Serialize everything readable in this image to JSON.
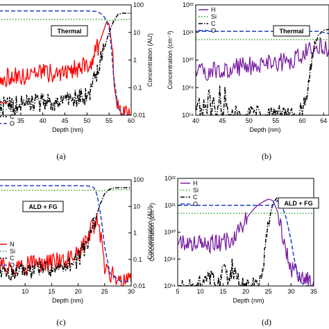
{
  "captions": [
    "(a)",
    "(b)",
    "(c)",
    "(d)"
  ],
  "chart_data": [
    {
      "panel": "a",
      "type": "line",
      "scale_y": "log",
      "xlabel": "Depth (nm)",
      "ylabel": "Concentration (AU)",
      "xlim": [
        30,
        60
      ],
      "ylim": [
        0.01,
        100
      ],
      "xticks": [
        35,
        40,
        45,
        50,
        55,
        60
      ],
      "yticks": [
        0.01,
        0.1,
        1,
        10,
        100
      ],
      "ytick_labels": [
        "0.01",
        "0.1",
        "1",
        "10",
        "100"
      ],
      "annotation": "Thermal",
      "legend": {
        "position": "bottom-left",
        "labels": [
          "N",
          "Si",
          "C",
          "O"
        ]
      },
      "series": [
        {
          "name": "N",
          "color": "#ff0000",
          "style": "solid",
          "x": [
            30,
            34,
            38,
            42,
            45,
            48,
            50,
            51,
            52,
            53,
            54,
            54.5,
            55,
            55.5,
            56,
            56.5,
            57,
            58,
            59,
            60
          ],
          "y": [
            0.2,
            0.25,
            0.3,
            0.35,
            0.4,
            0.5,
            0.7,
            1,
            2,
            5,
            15,
            25,
            20,
            5,
            0.5,
            0.05,
            0.02,
            0.01,
            0.01,
            0.01
          ]
        },
        {
          "name": "Si",
          "color": "#2ca02c",
          "style": "dotted",
          "x": [
            30,
            40,
            50,
            53,
            54,
            55,
            56,
            58,
            60
          ],
          "y": [
            30,
            30,
            30,
            30,
            29,
            27,
            27,
            30,
            30
          ]
        },
        {
          "name": "C",
          "color": "#000000",
          "style": "dashdot",
          "x": [
            30,
            35,
            40,
            45,
            48,
            50,
            51,
            52,
            53,
            54,
            55,
            56,
            57,
            58,
            59,
            60
          ],
          "y": [
            0.02,
            0.025,
            0.03,
            0.03,
            0.04,
            0.05,
            0.1,
            0.3,
            1,
            3,
            10,
            25,
            45,
            50,
            50,
            50
          ]
        },
        {
          "name": "O",
          "color": "#1f3fbf",
          "style": "dashed",
          "x": [
            30,
            40,
            50,
            52,
            53,
            54,
            55,
            55.5,
            56,
            57,
            58,
            60
          ],
          "y": [
            60,
            60,
            60,
            58,
            50,
            35,
            15,
            3,
            0.3,
            0.02,
            0.01,
            0.01
          ]
        }
      ]
    },
    {
      "panel": "b",
      "type": "line",
      "scale_y": "log",
      "xlabel": "Depth (nm)",
      "ylabel": "Concentration (cm⁻³)",
      "xlim": [
        40,
        65
      ],
      "ylim": [
        1e+18,
        1e+22
      ],
      "xticks": [
        40,
        45,
        50,
        55,
        60,
        64
      ],
      "xtick_labels": [
        "40",
        "45",
        "50",
        "55",
        "60",
        "64"
      ],
      "yticks": [
        1e+18,
        1e+19,
        1e+20,
        1e+21,
        1e+22
      ],
      "ytick_labels": [
        "10¹⁸",
        "10¹⁹",
        "10²⁰",
        "10²¹",
        "10²²"
      ],
      "annotation": "Thermal",
      "legend": {
        "position": "top-left",
        "labels": [
          "H",
          "Si",
          "C",
          "O"
        ]
      },
      "series": [
        {
          "name": "H",
          "color": "#7a1fa2",
          "style": "solid",
          "x": [
            40,
            45,
            50,
            55,
            58,
            60,
            61,
            62,
            63,
            64,
            65
          ],
          "y": [
            3.5e+19,
            4.5e+19,
            6e+19,
            8e+19,
            1e+20,
            1.5e+20,
            2e+20,
            2.7e+20,
            3.2e+20,
            3e+20,
            2.5e+20
          ]
        },
        {
          "name": "Si",
          "color": "#2ca02c",
          "style": "dotted",
          "x": [
            40,
            65
          ],
          "y": [
            5.5e+20,
            5.5e+20
          ]
        },
        {
          "name": "C",
          "color": "#000000",
          "style": "dashdot",
          "x": [
            40,
            40.5,
            41,
            41.5,
            42,
            42.5,
            43,
            43.5,
            44,
            44.5,
            45,
            45.5,
            46,
            50,
            55,
            59,
            60,
            61,
            62,
            63,
            64,
            65
          ],
          "y": [
            1e+18,
            6e+18,
            1e+18,
            2e+18,
            1e+18,
            8e+18,
            1e+18,
            4e+18,
            1e+18,
            9e+18,
            1e+18,
            6e+18,
            1e+18,
            1e+18,
            1e+18,
            1e+18,
            1.5e+18,
            1e+19,
            2e+20,
            8e+20,
            1.2e+21,
            1.3e+21
          ]
        },
        {
          "name": "O",
          "color": "#1f3fbf",
          "style": "dashed",
          "x": [
            40,
            60,
            62,
            63,
            64,
            65
          ],
          "y": [
            1.1e+21,
            1.1e+21,
            1.1e+21,
            1.1e+21,
            1e+21,
            9e+20
          ]
        }
      ]
    },
    {
      "panel": "c",
      "type": "line",
      "scale_y": "log",
      "xlabel": "Depth (nm)",
      "ylabel": "Concentration (AU)",
      "xlim": [
        5,
        30
      ],
      "ylim": [
        0.01,
        100
      ],
      "xticks": [
        10,
        15,
        20,
        25,
        30
      ],
      "yticks": [
        0.01,
        0.1,
        1,
        10,
        100
      ],
      "ytick_labels": [
        "0.01",
        "0.1",
        "1",
        "10",
        "100"
      ],
      "annotation": "ALD + FG",
      "legend": {
        "position": "middle-left",
        "labels": [
          "N",
          "Si",
          "C",
          "O"
        ]
      },
      "series": [
        {
          "name": "N",
          "color": "#ff0000",
          "style": "solid",
          "x": [
            5,
            10,
            15,
            18,
            20,
            21,
            22,
            23,
            23.5,
            24,
            24.5,
            25,
            26,
            27,
            28,
            29,
            30
          ],
          "y": [
            0.05,
            0.06,
            0.08,
            0.1,
            0.15,
            0.3,
            0.8,
            2,
            2.5,
            1.5,
            0.3,
            0.05,
            0.03,
            0.02,
            0.02,
            0.015,
            0.015
          ]
        },
        {
          "name": "Si",
          "color": "#2ca02c",
          "style": "dotted",
          "x": [
            5,
            20,
            23,
            24,
            25,
            27,
            30
          ],
          "y": [
            40,
            40,
            40,
            38,
            40,
            42,
            42
          ]
        },
        {
          "name": "C",
          "color": "#000000",
          "style": "dashdot",
          "x": [
            5,
            10,
            15,
            18,
            20,
            22,
            23,
            24,
            25,
            26,
            27,
            28,
            30
          ],
          "y": [
            0.03,
            0.04,
            0.05,
            0.06,
            0.1,
            0.5,
            2,
            10,
            30,
            45,
            50,
            50,
            50
          ]
        },
        {
          "name": "O",
          "color": "#1f3fbf",
          "style": "dashed",
          "x": [
            5,
            15,
            20,
            22,
            23,
            23.5,
            24,
            24.5,
            25,
            26,
            28,
            30
          ],
          "y": [
            60,
            60,
            60,
            58,
            50,
            30,
            10,
            2,
            0.3,
            0.03,
            0.015,
            0.015
          ]
        }
      ]
    },
    {
      "panel": "d",
      "type": "line",
      "scale_y": "log",
      "xlabel": "Depth (nm)",
      "ylabel": "Concentration (cm⁻³)",
      "xlim": [
        5,
        35
      ],
      "ylim": [
        1e+18,
        1e+22
      ],
      "xticks": [
        5,
        10,
        15,
        20,
        25,
        30,
        35
      ],
      "yticks": [
        1e+18,
        1e+19,
        1e+20,
        1e+21,
        1e+22
      ],
      "ytick_labels": [
        "10¹⁸",
        "10¹⁹",
        "10²⁰",
        "10²¹",
        "10²²"
      ],
      "annotation": "ALD + FG",
      "legend": {
        "position": "top-left",
        "labels": [
          "H",
          "Si",
          "C",
          "O"
        ]
      },
      "series": [
        {
          "name": "H",
          "color": "#7a1fa2",
          "style": "solid",
          "x": [
            5,
            10,
            15,
            17,
            18,
            19,
            20,
            21,
            22,
            23,
            24,
            25,
            26,
            27,
            28,
            29,
            30,
            31,
            32,
            33,
            34,
            35
          ],
          "y": [
            4e+19,
            3.5e+19,
            4e+19,
            5e+19,
            8e+19,
            1.5e+20,
            3e+20,
            5e+20,
            8e+20,
            1.1e+21,
            1.4e+21,
            1.7e+21,
            1.5e+21,
            6e+20,
            1e+20,
            1.5e+19,
            5e+18,
            3e+18,
            2e+18,
            1.5e+18,
            1.5e+18,
            1.5e+18
          ]
        },
        {
          "name": "Si",
          "color": "#2ca02c",
          "style": "dotted",
          "x": [
            5,
            35
          ],
          "y": [
            5e+20,
            5e+20
          ]
        },
        {
          "name": "C",
          "color": "#000000",
          "style": "dashdot",
          "x": [
            5,
            10,
            12,
            14,
            15,
            16,
            17,
            18,
            19,
            20,
            21,
            22,
            22.5,
            23,
            24,
            25,
            26,
            27,
            28,
            29,
            30,
            32,
            34,
            35
          ],
          "y": [
            1e+18,
            1e+18,
            2e+18,
            1e+18,
            6e+18,
            1.5e+18,
            5e+18,
            2e+18,
            1e+18,
            1e+18,
            1e+18,
            1.5e+18,
            1e+18,
            1.5e+18,
            8e+18,
            2e+20,
            1.2e+21,
            2e+21,
            1.5e+21,
            1.2e+21,
            1.3e+21,
            1.4e+21,
            1.3e+21,
            1.3e+21
          ]
        },
        {
          "name": "O",
          "color": "#1f3fbf",
          "style": "dashed",
          "x": [
            5,
            20,
            24,
            25,
            26,
            27,
            28,
            29,
            30,
            31,
            32,
            33,
            35
          ],
          "y": [
            1e+21,
            1e+21,
            1e+21,
            1e+21,
            1e+21,
            1.5e+21,
            1e+21,
            3e+20,
            5e+19,
            5e+18,
            1.5e+18,
            1e+18,
            1e+18
          ]
        }
      ]
    }
  ]
}
